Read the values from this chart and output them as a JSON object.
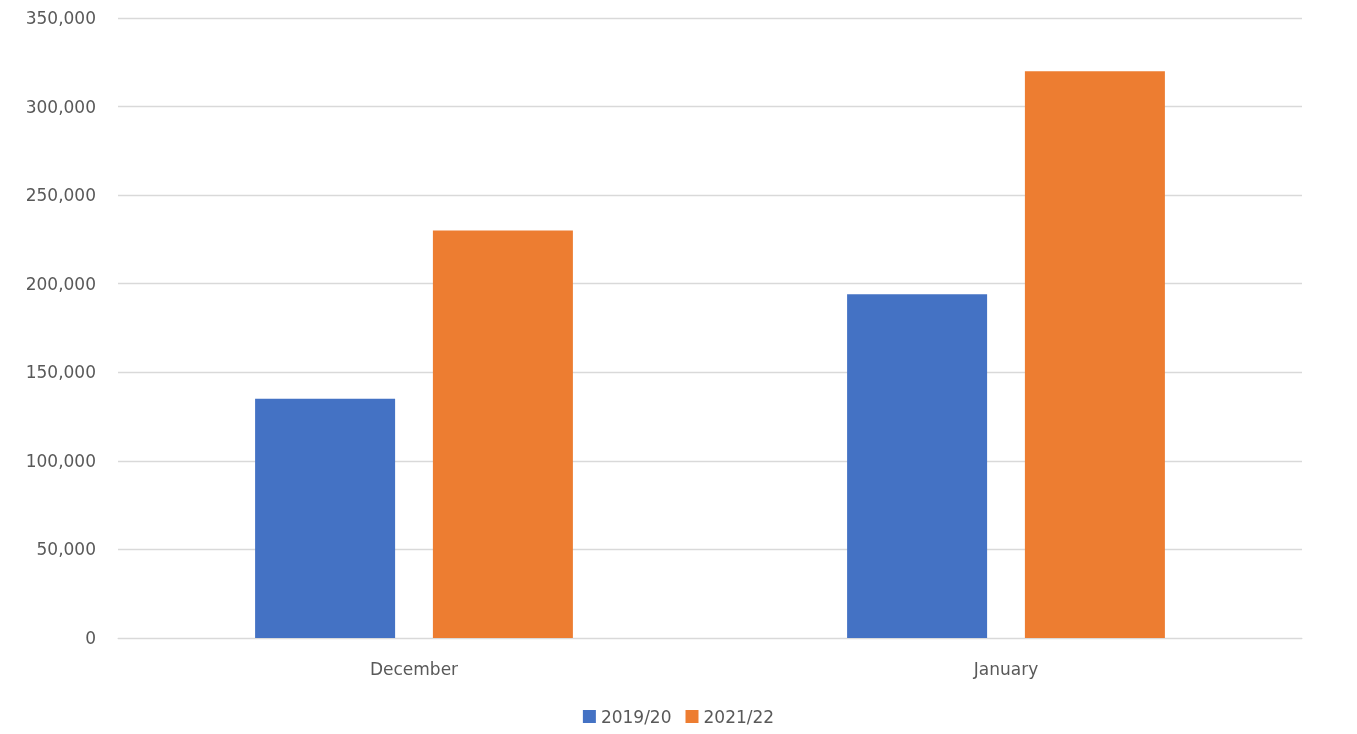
{
  "chart_data": {
    "type": "bar",
    "categories": [
      "December",
      "January"
    ],
    "series": [
      {
        "name": "2019/20",
        "color": "#4472c4",
        "values": [
          135000,
          194000
        ]
      },
      {
        "name": "2021/22",
        "color": "#ed7d31",
        "values": [
          230000,
          320000
        ]
      }
    ],
    "ylim": [
      0,
      350000
    ],
    "yticks": [
      0,
      {
        "value": 50000,
        "label": "50,000"
      },
      {
        "value": 100000,
        "label": "100,000"
      },
      {
        "value": 150000,
        "label": "150,000"
      },
      {
        "value": 200000,
        "label": "200,000"
      },
      {
        "value": 250000,
        "label": "250,000"
      },
      {
        "value": 300000,
        "label": "300,000"
      },
      {
        "value": 350000,
        "label": "350,000"
      }
    ],
    "grid": "y",
    "legend": "bottom"
  }
}
